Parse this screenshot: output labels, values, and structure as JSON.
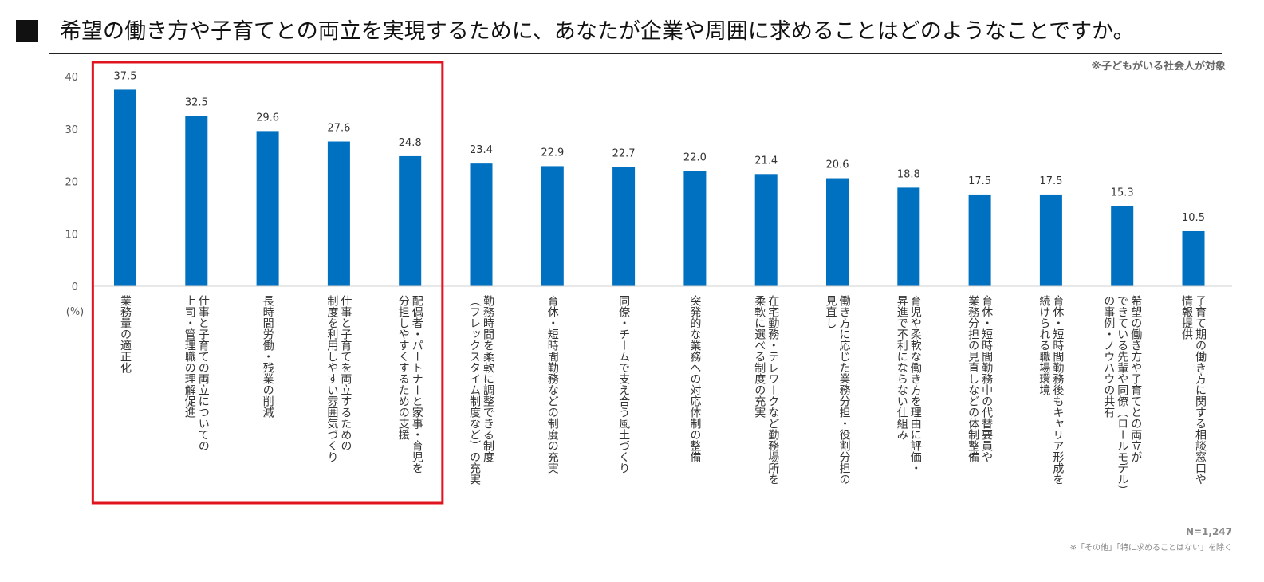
{
  "header": {
    "title": "希望の働き方や子育てとの両立を実現するために、あなたが企業や周囲に求めることはどのようなことですか。"
  },
  "notes": {
    "top": "※子どもがいる社会人が対象",
    "n": "N=1,247",
    "bottom": "※「その他」「特に求めることはない」を除く"
  },
  "chart_data": {
    "type": "bar",
    "ylabel": "(%)",
    "ylim": [
      0,
      40
    ],
    "yticks": [
      0,
      10,
      20,
      30,
      40
    ],
    "grid": false,
    "bar_color": "#0070C0",
    "highlight_color": "#E0141E",
    "highlight_range": [
      0,
      4
    ],
    "values": [
      37.5,
      32.5,
      29.6,
      27.6,
      24.8,
      23.4,
      22.9,
      22.7,
      22.0,
      21.4,
      20.6,
      18.8,
      17.5,
      17.5,
      15.3,
      10.5
    ],
    "value_labels": [
      "37.5",
      "32.5",
      "29.6",
      "27.6",
      "24.8",
      "23.4",
      "22.9",
      "22.7",
      "22.0",
      "21.4",
      "20.6",
      "18.8",
      "17.5",
      "17.5",
      "15.3",
      "10.5"
    ],
    "categories": [
      "業務量の適正化",
      "仕事と子育ての両立についての上司・管理職の理解促進",
      "長時間労働・残業の削減",
      "仕事と子育てを両立するための制度を利用しやすい雰囲気づくり",
      "配偶者・パートナーと家事・育児を分担しやすくするための支援",
      "勤務時間を柔軟に調整できる制度（フレックスタイム制度など）の充実",
      "育休・短時間勤務などの制度の充実",
      "同僚・チームで支え合う風土づくり",
      "突発的な業務への対応体制の整備",
      "在宅勤務・テレワークなど勤務場所を柔軟に選べる制度の充実",
      "働き方に応じた業務分担・役割分担の見直し",
      "育児や柔軟な働き方を理由に評価・昇進で不利にならない仕組み",
      "育休・短時間勤務中の代替要員や業務分担の見直しなどの体制整備",
      "育休・短時間勤務後もキャリア形成を続けられる職場環境",
      "希望の働き方や子育てとの両立ができている先輩や同僚（ロールモデル）の事例・ノウハウの共有",
      "子育て期の働き方に関する相談窓口や情報提供"
    ],
    "category_lines": [
      [
        "業務量の適正化"
      ],
      [
        "仕事と子育ての両立についての",
        "上司・管理職の理解促進"
      ],
      [
        "長時間労働・残業の削減"
      ],
      [
        "仕事と子育てを両立するための",
        "制度を利用しやすい雰囲気づくり"
      ],
      [
        "配偶者・パートナーと家事・育児を",
        "分担しやすくするための支援"
      ],
      [
        "勤務時間を柔軟に調整できる制度",
        "（フレックスタイム制度など）の充実"
      ],
      [
        "育休・短時間勤務などの制度の充実"
      ],
      [
        "同僚・チームで支え合う風土づくり"
      ],
      [
        "突発的な業務への対応体制の整備"
      ],
      [
        "在宅勤務・テレワークなど勤務場所を",
        "柔軟に選べる制度の充実"
      ],
      [
        "働き方に応じた業務分担・役割分担の",
        "見直し"
      ],
      [
        "育児や柔軟な働き方を理由に評価・",
        "昇進で不利にならない仕組み"
      ],
      [
        "育休・短時間勤務中の代替要員や",
        "業務分担の見直しなどの体制整備"
      ],
      [
        "育休・短時間勤務後もキャリア形成を",
        "続けられる職場環境"
      ],
      [
        "希望の働き方や子育てとの両立が",
        "できている先輩や同僚（ロールモデル）",
        "の事例・ノウハウの共有"
      ],
      [
        "子育て期の働き方に関する相談窓口や",
        "情報提供"
      ]
    ]
  }
}
